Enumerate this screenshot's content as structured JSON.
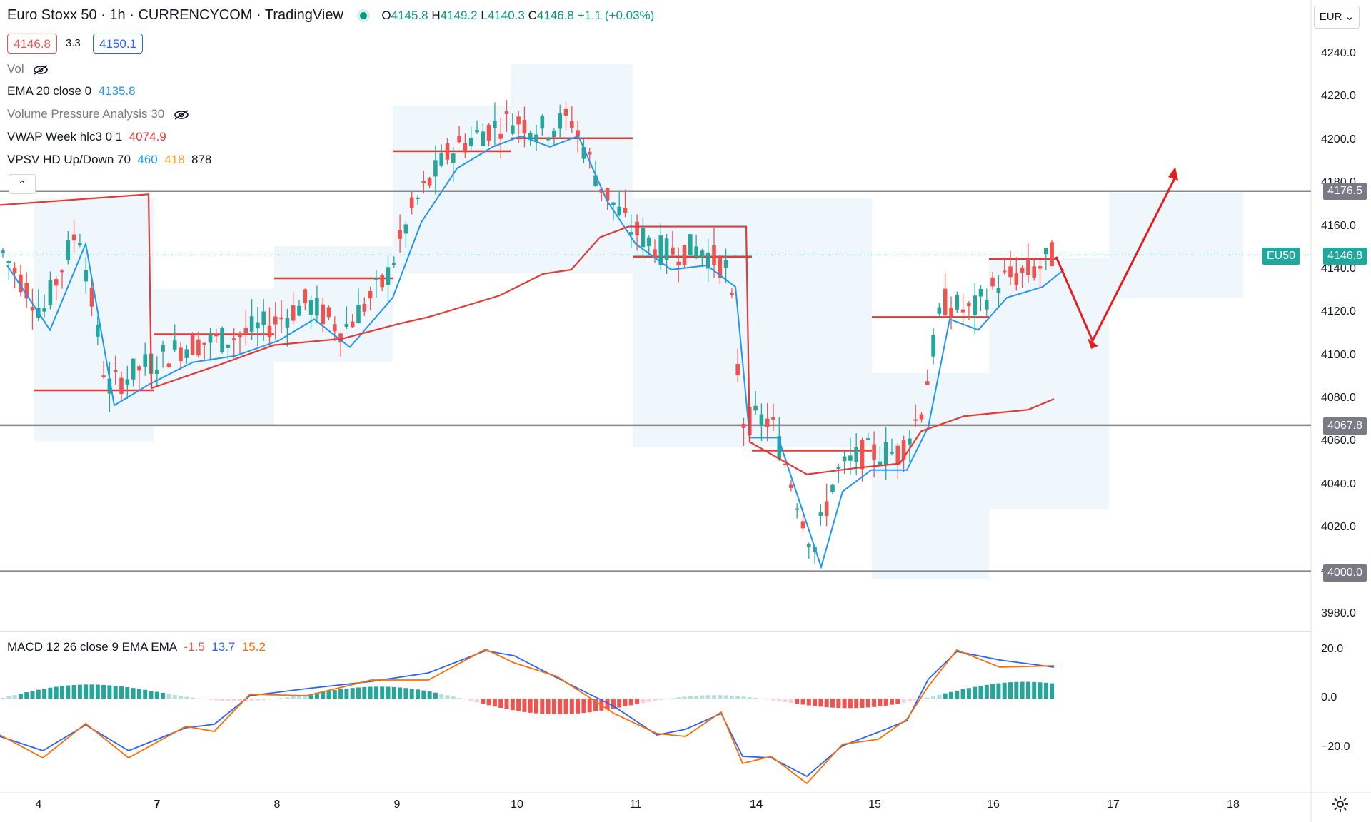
{
  "header": {
    "symbol": "Euro Stoxx 50",
    "interval": "1h",
    "source": "CURRENCYCOM",
    "platform": "TradingView",
    "open_label": "O",
    "open": "4145.8",
    "high_label": "H",
    "high": "4149.2",
    "low_label": "L",
    "low": "4140.3",
    "close_label": "C",
    "close": "4146.8",
    "change": "+1.1 (+0.03%)",
    "sell_price": "4146.8",
    "spread": "3.3",
    "buy_price": "4150.1"
  },
  "indicators": {
    "vol": "Vol",
    "ema_label": "EMA 20 close 0",
    "ema_value": "4135.8",
    "vpa_label": "Volume Pressure Analysis 30",
    "vwap_label": "VWAP Week hlc3 0 1",
    "vwap_value": "4074.9",
    "vpsv_label": "VPSV HD Up/Down 70",
    "vpsv_up": "460",
    "vpsv_down": "418",
    "vpsv_total": "878",
    "macd_label": "MACD 12 26 close 9 EMA EMA",
    "macd_hist": "-1.5",
    "macd_line": "13.7",
    "macd_signal": "15.2"
  },
  "currency": "EUR",
  "price_axis": [
    "4240.0",
    "4220.0",
    "4200.0",
    "4180.0",
    "4160.0",
    "4140.0",
    "4120.0",
    "4100.0",
    "4080.0",
    "4060.0",
    "4040.0",
    "4020.0",
    "4000.0",
    "3980.0"
  ],
  "level_tags": {
    "resistance": "4176.5",
    "mid_support": "4067.8",
    "support": "4000.0"
  },
  "last_price_tag": {
    "symbol": "EU50",
    "price": "4146.8"
  },
  "macd_axis": [
    "20.0",
    "0.0",
    "−20.0"
  ],
  "time_axis": [
    "4",
    "7",
    "8",
    "9",
    "10",
    "11",
    "14",
    "15",
    "16",
    "17",
    "18"
  ],
  "colors": {
    "up": "#26a69a",
    "down": "#ef5350",
    "ema": "#2196f3",
    "vwap": "#e53935",
    "level": "#888888",
    "arrow": "#e02020",
    "macd": "#2962ff",
    "signal": "#ff6d00"
  }
}
